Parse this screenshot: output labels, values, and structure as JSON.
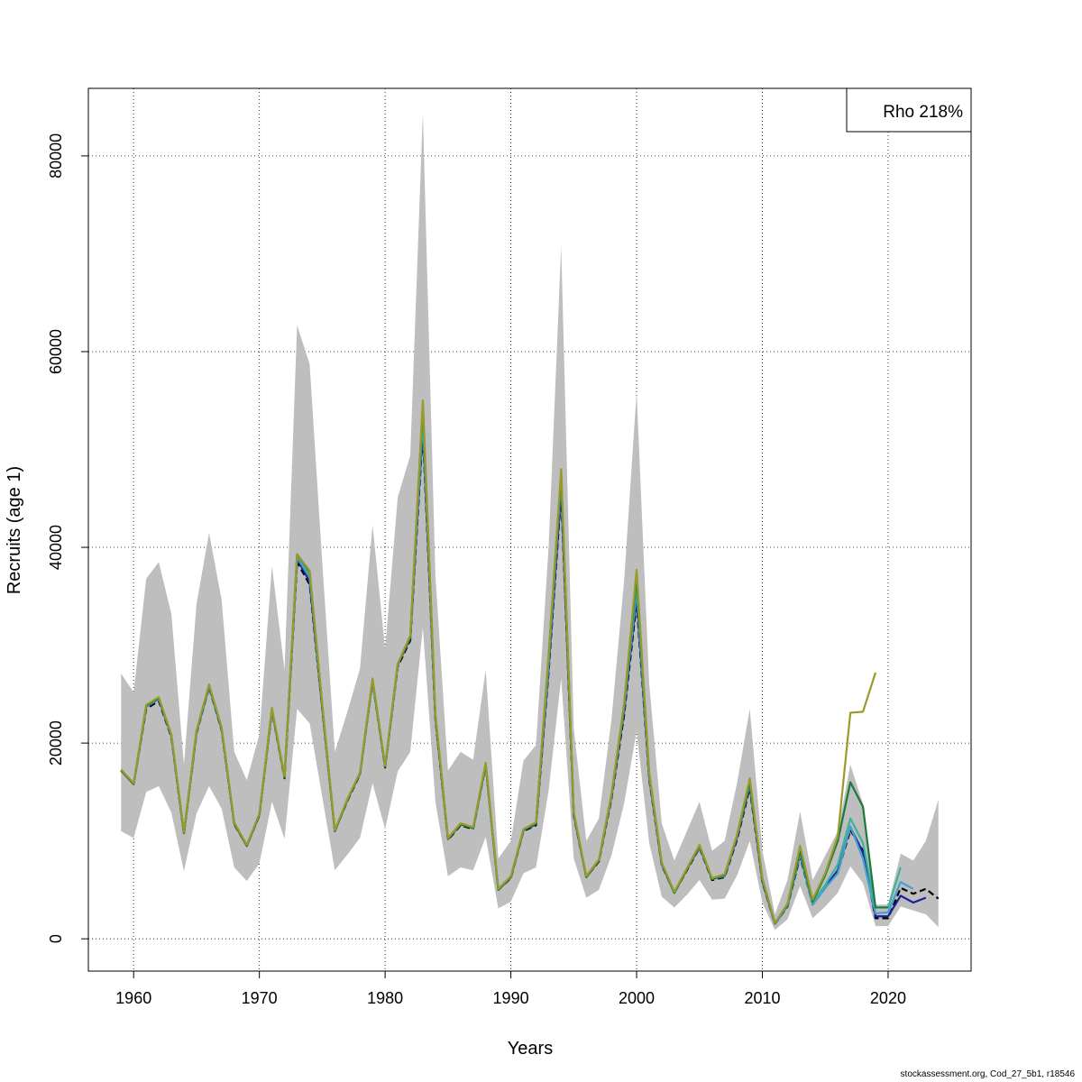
{
  "chart_data": {
    "type": "line",
    "xlabel": "Years",
    "ylabel": "Recruits (age 1)",
    "xlim": [
      1956.4,
      2026.6
    ],
    "ylim": [
      -3300,
      86900
    ],
    "x_ticks": [
      1960,
      1970,
      1980,
      1990,
      2000,
      2010,
      2020
    ],
    "y_ticks": [
      0,
      20000,
      40000,
      60000,
      80000
    ],
    "grid": true,
    "legend": {
      "position": "top-right",
      "text": "Rho 218%"
    },
    "confidence_band": {
      "color": "#bebebe",
      "x": [
        1959,
        1960,
        1961,
        1962,
        1963,
        1964,
        1965,
        1966,
        1967,
        1968,
        1969,
        1970,
        1971,
        1972,
        1973,
        1974,
        1975,
        1976,
        1977,
        1978,
        1979,
        1980,
        1981,
        1982,
        1983,
        1984,
        1985,
        1986,
        1987,
        1988,
        1989,
        1990,
        1991,
        1992,
        1993,
        1994,
        1995,
        1996,
        1997,
        1998,
        1999,
        2000,
        2001,
        2002,
        2003,
        2004,
        2005,
        2006,
        2007,
        2008,
        2009,
        2010,
        2011,
        2012,
        2013,
        2014,
        2015,
        2016,
        2017,
        2018,
        2019,
        2020,
        2021,
        2022,
        2023,
        2024
      ],
      "upper": [
        27100,
        25200,
        36800,
        38500,
        33200,
        17800,
        34200,
        41500,
        34600,
        19100,
        16200,
        20900,
        38100,
        27500,
        62700,
        58700,
        38500,
        19100,
        23200,
        27600,
        42300,
        29600,
        45100,
        49400,
        84400,
        37100,
        17200,
        19100,
        18300,
        27500,
        8200,
        10000,
        18200,
        19800,
        40000,
        70800,
        21500,
        10000,
        12300,
        22400,
        36500,
        55900,
        26100,
        11800,
        8000,
        11000,
        14000,
        9000,
        10000,
        16000,
        23500,
        9000,
        2500,
        6000,
        13000,
        6000,
        8500,
        11000,
        17800,
        13800,
        3500,
        3500,
        8700,
        8000,
        10000,
        14200
      ],
      "lower": [
        11000,
        10300,
        15000,
        15600,
        12900,
        6900,
        12800,
        15600,
        13300,
        7300,
        5900,
        7700,
        14000,
        10200,
        23500,
        22000,
        14500,
        7000,
        8600,
        10300,
        15900,
        11200,
        17100,
        19100,
        31800,
        14000,
        6400,
        7300,
        7000,
        10400,
        3100,
        3800,
        6700,
        7300,
        15100,
        26600,
        8200,
        4200,
        5000,
        8500,
        13800,
        21200,
        9800,
        4300,
        3200,
        4500,
        6000,
        4000,
        4100,
        6500,
        10000,
        3700,
        900,
        2000,
        5400,
        2100,
        3300,
        4700,
        7400,
        5700,
        1300,
        1300,
        3300,
        2900,
        2500,
        1200
      ]
    },
    "series": [
      {
        "color": "#000000",
        "dash": "7,4",
        "x": [
          1959,
          1960,
          1961,
          1962,
          1963,
          1964,
          1965,
          1966,
          1967,
          1968,
          1969,
          1970,
          1971,
          1972,
          1973,
          1974,
          1975,
          1976,
          1977,
          1978,
          1979,
          1980,
          1981,
          1982,
          1983,
          1984,
          1985,
          1986,
          1987,
          1988,
          1989,
          1990,
          1991,
          1992,
          1993,
          1994,
          1995,
          1996,
          1997,
          1998,
          1999,
          2000,
          2001,
          2002,
          2003,
          2004,
          2005,
          2006,
          2007,
          2008,
          2009,
          2010,
          2011,
          2012,
          2013,
          2014,
          2015,
          2016,
          2017,
          2018,
          2019,
          2020,
          2021,
          2022,
          2023,
          2024
        ],
        "values": [
          17200,
          15800,
          23500,
          24300,
          20600,
          10700,
          21000,
          25700,
          21300,
          11700,
          9500,
          12600,
          23300,
          16400,
          38500,
          36200,
          23500,
          11000,
          14100,
          16800,
          26300,
          17500,
          27800,
          30500,
          51800,
          22400,
          10100,
          11600,
          11200,
          17700,
          5000,
          6200,
          11000,
          11600,
          27200,
          45500,
          12600,
          6300,
          7900,
          14300,
          22800,
          34400,
          16300,
          7500,
          4700,
          7000,
          9300,
          6000,
          6300,
          10200,
          15400,
          5800,
          1500,
          3300,
          8400,
          3500,
          5200,
          6800,
          11100,
          9000,
          2100,
          2100,
          5200,
          4600,
          5100,
          4100
        ]
      },
      {
        "color": "#1e1e96",
        "x": [
          1959,
          1960,
          1961,
          1962,
          1963,
          1964,
          1965,
          1966,
          1967,
          1968,
          1969,
          1970,
          1971,
          1972,
          1973,
          1974,
          1975,
          1976,
          1977,
          1978,
          1979,
          1980,
          1981,
          1982,
          1983,
          1984,
          1985,
          1986,
          1987,
          1988,
          1989,
          1990,
          1991,
          1992,
          1993,
          1994,
          1995,
          1996,
          1997,
          1998,
          1999,
          2000,
          2001,
          2002,
          2003,
          2004,
          2005,
          2006,
          2007,
          2008,
          2009,
          2010,
          2011,
          2012,
          2013,
          2014,
          2015,
          2016,
          2017,
          2018,
          2019,
          2020,
          2021,
          2022,
          2023
        ],
        "values": [
          17200,
          15800,
          23700,
          24500,
          20700,
          10800,
          21100,
          25800,
          21400,
          11800,
          9500,
          12700,
          23400,
          16500,
          38800,
          36500,
          23600,
          11000,
          14200,
          16900,
          26400,
          17600,
          28000,
          30700,
          52500,
          22600,
          10200,
          11700,
          11300,
          17800,
          5000,
          6300,
          11100,
          11700,
          27600,
          46000,
          12700,
          6300,
          8000,
          14500,
          23200,
          35000,
          16500,
          7600,
          4700,
          7100,
          9400,
          6100,
          6400,
          10400,
          15700,
          5900,
          1500,
          3400,
          8600,
          3600,
          5300,
          7000,
          11400,
          8800,
          2300,
          2300,
          4400,
          3700,
          4200
        ]
      },
      {
        "color": "#45a0d0",
        "x": [
          1959,
          1960,
          1961,
          1962,
          1963,
          1964,
          1965,
          1966,
          1967,
          1968,
          1969,
          1970,
          1971,
          1972,
          1973,
          1974,
          1975,
          1976,
          1977,
          1978,
          1979,
          1980,
          1981,
          1982,
          1983,
          1984,
          1985,
          1986,
          1987,
          1988,
          1989,
          1990,
          1991,
          1992,
          1993,
          1994,
          1995,
          1996,
          1997,
          1998,
          1999,
          2000,
          2001,
          2002,
          2003,
          2004,
          2005,
          2006,
          2007,
          2008,
          2009,
          2010,
          2011,
          2012,
          2013,
          2014,
          2015,
          2016,
          2017,
          2018,
          2019,
          2020,
          2021,
          2022
        ],
        "values": [
          17200,
          15800,
          23700,
          24500,
          20700,
          10800,
          21100,
          25800,
          21400,
          11800,
          9500,
          12700,
          23400,
          16500,
          39000,
          36900,
          23700,
          11000,
          14200,
          16900,
          26400,
          17600,
          28000,
          30800,
          53000,
          22700,
          10200,
          11700,
          11300,
          17800,
          5000,
          6300,
          11100,
          11800,
          28000,
          47000,
          12800,
          6300,
          8000,
          14600,
          23500,
          35600,
          16600,
          7600,
          4700,
          7100,
          9400,
          6100,
          6400,
          10500,
          15800,
          6000,
          1500,
          3400,
          8700,
          3500,
          5200,
          6700,
          11500,
          8200,
          2600,
          2700,
          5800,
          5100
        ]
      },
      {
        "color": "#3cb39a",
        "x": [
          1959,
          1960,
          1961,
          1962,
          1963,
          1964,
          1965,
          1966,
          1967,
          1968,
          1969,
          1970,
          1971,
          1972,
          1973,
          1974,
          1975,
          1976,
          1977,
          1978,
          1979,
          1980,
          1981,
          1982,
          1983,
          1984,
          1985,
          1986,
          1987,
          1988,
          1989,
          1990,
          1991,
          1992,
          1993,
          1994,
          1995,
          1996,
          1997,
          1998,
          1999,
          2000,
          2001,
          2002,
          2003,
          2004,
          2005,
          2006,
          2007,
          2008,
          2009,
          2010,
          2011,
          2012,
          2013,
          2014,
          2015,
          2016,
          2017,
          2018,
          2019,
          2020,
          2021
        ],
        "values": [
          17200,
          15800,
          23800,
          24600,
          20800,
          10800,
          21200,
          25900,
          21500,
          11800,
          9500,
          12700,
          23500,
          16500,
          39200,
          37300,
          23800,
          11000,
          14200,
          16900,
          26400,
          17600,
          28000,
          30800,
          54000,
          22800,
          10200,
          11700,
          11300,
          17800,
          5000,
          6300,
          11100,
          11800,
          28500,
          47200,
          12900,
          6300,
          8000,
          14600,
          23600,
          36300,
          16800,
          7700,
          4700,
          7100,
          9500,
          6100,
          6500,
          10600,
          15900,
          6100,
          1600,
          3500,
          8800,
          3700,
          5500,
          7600,
          12300,
          9800,
          3200,
          3200,
          7300
        ]
      },
      {
        "color": "#1a7a3a",
        "x": [
          1959,
          1960,
          1961,
          1962,
          1963,
          1964,
          1965,
          1966,
          1967,
          1968,
          1969,
          1970,
          1971,
          1972,
          1973,
          1974,
          1975,
          1976,
          1977,
          1978,
          1979,
          1980,
          1981,
          1982,
          1983,
          1984,
          1985,
          1986,
          1987,
          1988,
          1989,
          1990,
          1991,
          1992,
          1993,
          1994,
          1995,
          1996,
          1997,
          1998,
          1999,
          2000,
          2001,
          2002,
          2003,
          2004,
          2005,
          2006,
          2007,
          2008,
          2009,
          2010,
          2011,
          2012,
          2013,
          2014,
          2015,
          2016,
          2017,
          2018,
          2019,
          2020
        ],
        "values": [
          17200,
          15800,
          23800,
          24600,
          20800,
          10800,
          21200,
          25900,
          21500,
          11800,
          9500,
          12700,
          23500,
          16500,
          39300,
          37500,
          23800,
          11000,
          14200,
          16900,
          26500,
          17600,
          28000,
          30800,
          54600,
          22800,
          10200,
          11700,
          11300,
          17800,
          5000,
          6300,
          11100,
          11800,
          28800,
          47500,
          12900,
          6300,
          8000,
          14700,
          23800,
          37000,
          16900,
          7700,
          4700,
          7100,
          9500,
          6100,
          6500,
          10600,
          16000,
          6100,
          1600,
          3500,
          9000,
          3800,
          6500,
          10000,
          16000,
          13500,
          3200,
          3200
        ]
      },
      {
        "color": "#9a9a2a",
        "x": [
          1959,
          1960,
          1961,
          1962,
          1963,
          1964,
          1965,
          1966,
          1967,
          1968,
          1969,
          1970,
          1971,
          1972,
          1973,
          1974,
          1975,
          1976,
          1977,
          1978,
          1979,
          1980,
          1981,
          1982,
          1983,
          1984,
          1985,
          1986,
          1987,
          1988,
          1989,
          1990,
          1991,
          1992,
          1993,
          1994,
          1995,
          1996,
          1997,
          1998,
          1999,
          2000,
          2001,
          2002,
          2003,
          2004,
          2005,
          2006,
          2007,
          2008,
          2009,
          2010,
          2011,
          2012,
          2013,
          2014,
          2015,
          2016,
          2017,
          2018,
          2019
        ],
        "values": [
          17300,
          15900,
          23900,
          24700,
          20900,
          10900,
          21300,
          26000,
          21600,
          11900,
          9600,
          12800,
          23600,
          16600,
          39300,
          37600,
          24000,
          11100,
          14300,
          17000,
          26600,
          17700,
          28100,
          31000,
          55000,
          23000,
          10300,
          11800,
          11400,
          18000,
          5100,
          6400,
          11200,
          11900,
          29000,
          48000,
          13000,
          6400,
          8100,
          14800,
          24000,
          37700,
          17000,
          7800,
          4800,
          7200,
          9600,
          6200,
          6600,
          10700,
          16400,
          6200,
          1600,
          3600,
          9500,
          4000,
          6700,
          10500,
          23100,
          23200,
          27200
        ]
      }
    ]
  },
  "footer_text": "stockassessment.org, Cod_27_5b1, r18546"
}
